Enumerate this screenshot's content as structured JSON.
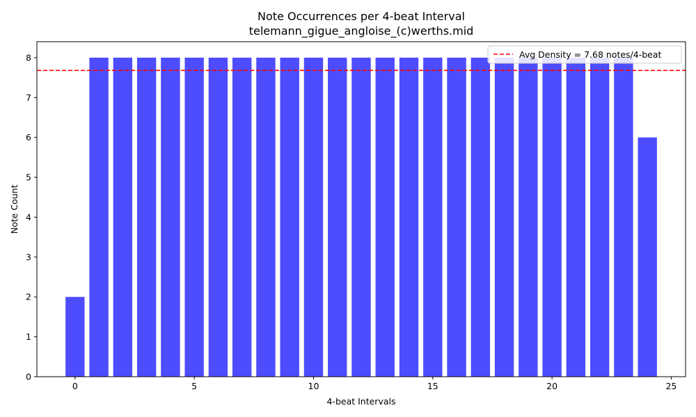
{
  "chart_data": {
    "type": "bar",
    "title": "Note Occurrences per 4-beat Interval",
    "subtitle": "telemann_gigue_angloise_(c)werths.mid",
    "xlabel": "4-beat Intervals",
    "ylabel": "Note Count",
    "x": [
      0,
      1,
      2,
      3,
      4,
      5,
      6,
      7,
      8,
      9,
      10,
      11,
      12,
      13,
      14,
      15,
      16,
      17,
      18,
      19,
      20,
      21,
      22,
      23,
      24
    ],
    "values": [
      2,
      8,
      8,
      8,
      8,
      8,
      8,
      8,
      8,
      8,
      8,
      8,
      8,
      8,
      8,
      8,
      8,
      8,
      8,
      8,
      8,
      8,
      8,
      8,
      6
    ],
    "xlim": [
      -1.6,
      25.6
    ],
    "ylim": [
      0,
      8.4
    ],
    "xticks": [
      0,
      5,
      10,
      15,
      20,
      25
    ],
    "yticks": [
      0,
      1,
      2,
      3,
      4,
      5,
      6,
      7,
      8
    ],
    "bar_color": "#4d4dff",
    "grid": false,
    "reference_line": {
      "y": 7.68,
      "label": "Avg Density = 7.68 notes/4-beat",
      "color": "#ff0000",
      "style": "dashed"
    },
    "legend_position": "top-right"
  }
}
